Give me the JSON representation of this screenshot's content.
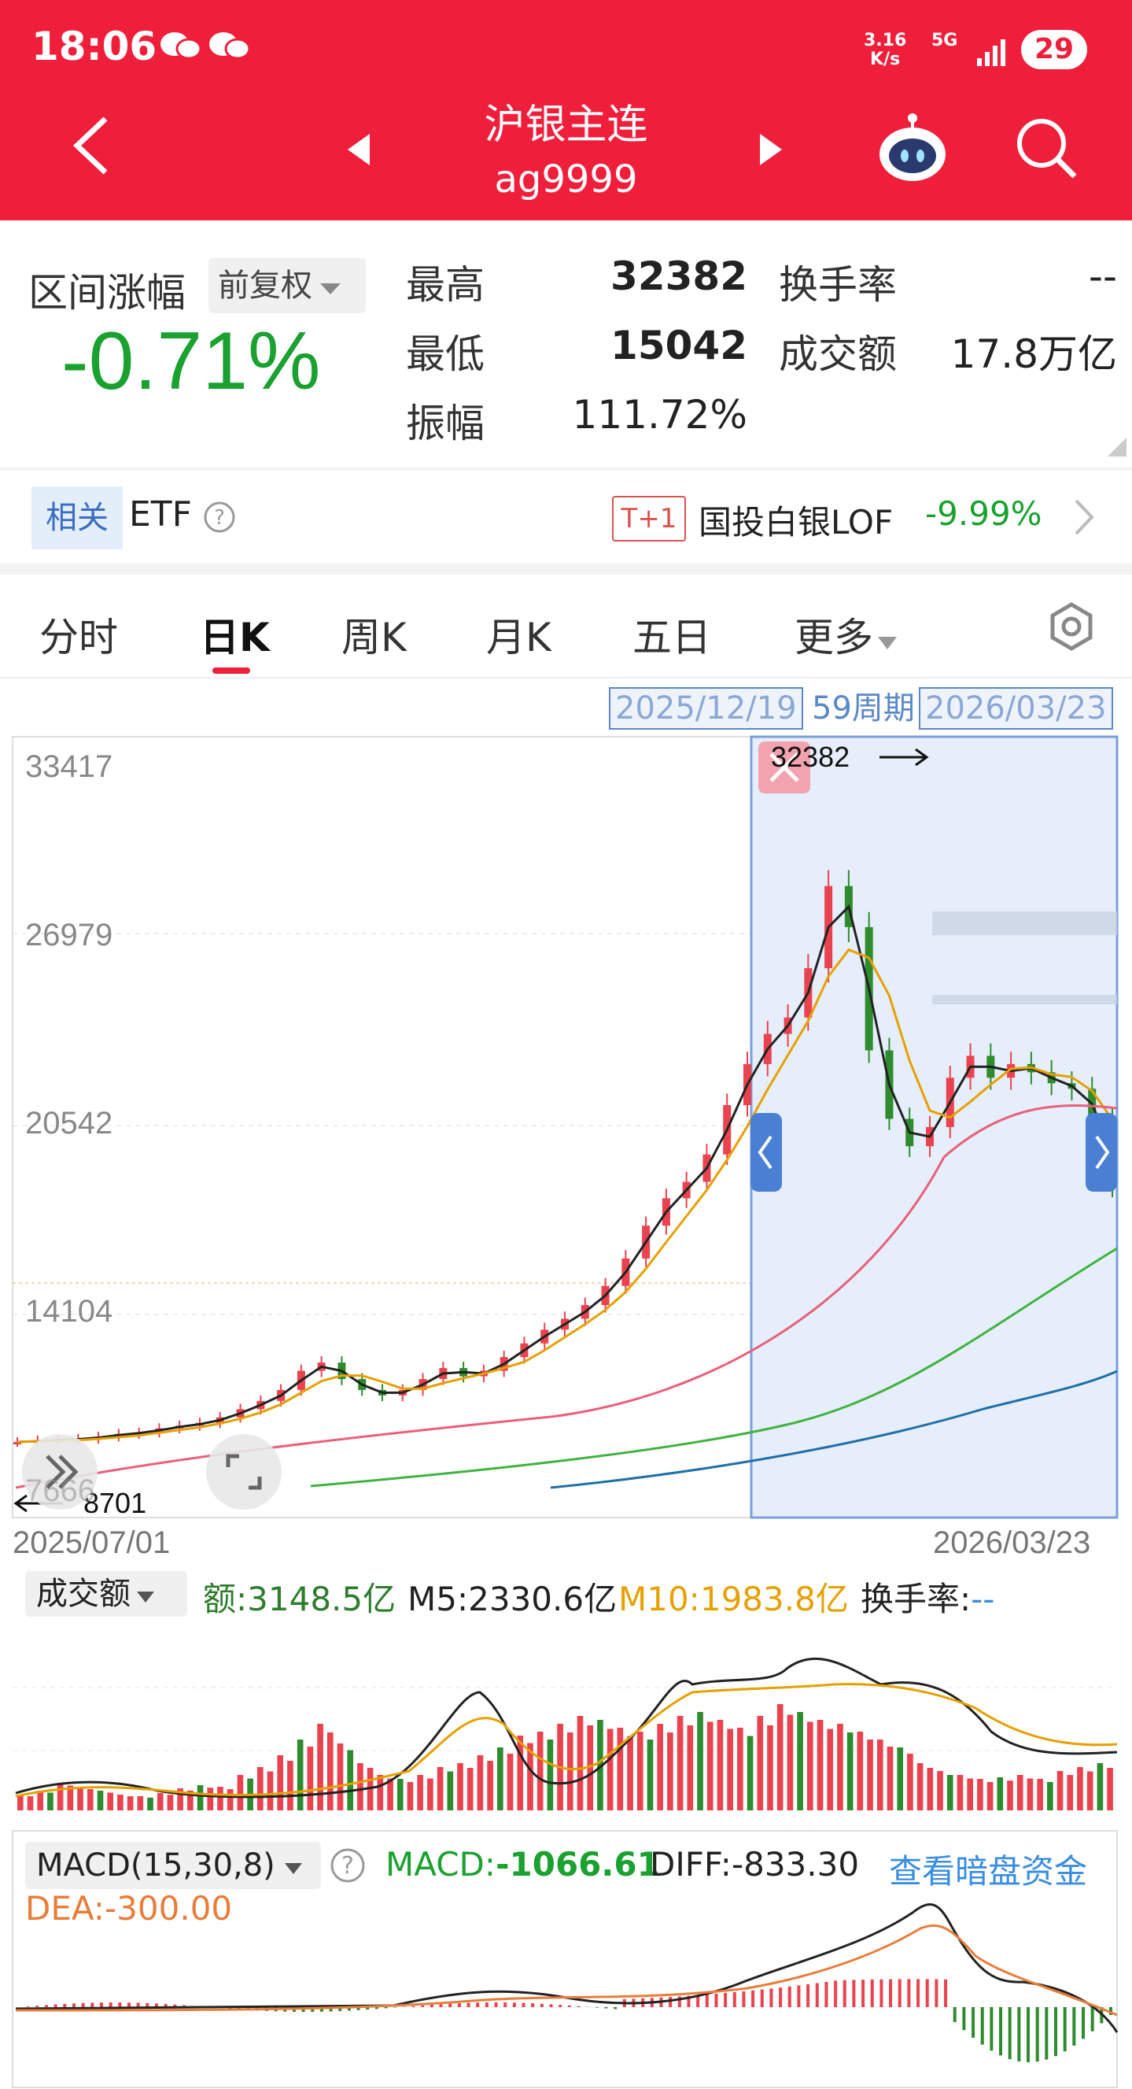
{
  "status": {
    "time": "18:06",
    "net_speed": "3.16",
    "net_unit": "K/s",
    "network": "5G",
    "battery": "29"
  },
  "header": {
    "title": "沪银主连",
    "code": "ag9999"
  },
  "stats": {
    "range_change_label": "区间涨幅",
    "adjust_label": "前复权",
    "range_change": "-0.71%",
    "high_label": "最高",
    "high": "32382",
    "low_label": "最低",
    "low": "15042",
    "amp_label": "振幅",
    "amp": "111.72%",
    "turnover_label": "换手率",
    "turnover": "--",
    "volume_label": "成交额",
    "volume": "17.8万亿"
  },
  "etf": {
    "tag": "相关",
    "label": "ETF",
    "badge": "T+1",
    "name": "国投白银LOF",
    "change": "-9.99%"
  },
  "tabs": [
    "分时",
    "日K",
    "周K",
    "月K",
    "五日",
    "更多"
  ],
  "range": {
    "start": "2025/12/19",
    "period": "59周期",
    "end": "2026/03/23"
  },
  "chart_data": {
    "type": "candlestick",
    "y_ticks": [
      "33417",
      "26979",
      "20542",
      "14104",
      "7666"
    ],
    "x_labels": [
      "2025/07/01",
      "2026/03/23"
    ],
    "max_label": "32382",
    "min_label": "8701",
    "ma_close": [
      8700,
      8760,
      8780,
      8820,
      8900,
      9000,
      9050,
      9200,
      9300,
      9400,
      9600,
      9900,
      10200,
      10600,
      11300,
      11600,
      11000,
      10600,
      10400,
      10600,
      11000,
      11400,
      11100,
      11300,
      11800,
      12300,
      12800,
      13200,
      13700,
      14400,
      15400,
      16600,
      17600,
      18200,
      19200,
      21000,
      22500,
      23600,
      24200,
      26000,
      29000,
      27500,
      23000,
      20500,
      19500,
      20200,
      22000,
      22800,
      22000,
      22500,
      22200,
      21800,
      21600,
      20500,
      18000
    ]
  },
  "volume": {
    "selector": "成交额",
    "amount_label": "额:",
    "amount": "3148.5亿",
    "m5_label": "M5:",
    "m5": "2330.6亿",
    "m10_label": "M10:",
    "m10": "1983.8亿",
    "turnover_label": "换手率:",
    "turnover": "--",
    "bars": [
      20,
      25,
      35,
      30,
      25,
      20,
      18,
      22,
      28,
      32,
      30,
      45,
      55,
      70,
      90,
      110,
      85,
      60,
      45,
      40,
      45,
      55,
      60,
      70,
      80,
      95,
      100,
      110,
      120,
      115,
      105,
      100,
      110,
      120,
      125,
      115,
      105,
      120,
      135,
      125,
      115,
      110,
      100,
      90,
      80,
      60,
      50,
      45,
      40,
      42,
      45,
      40,
      50,
      55,
      60
    ]
  },
  "macd": {
    "selector": "MACD(15,30,8)",
    "macd_label": "MACD:",
    "macd": "-1066.61",
    "diff_label": "DIFF:",
    "diff": "-833.30",
    "dea_label": "DEA:",
    "dea": "-300.00",
    "link": "查看暗盘资金"
  },
  "colors": {
    "brand": "#ef1f3b",
    "up": "#e8434e",
    "down": "#2e8b2e",
    "ma5": "#222222",
    "ma10": "#e6a000",
    "ma20": "#e9607a",
    "ma60": "#3fb33f",
    "ma120": "#1f6fa8"
  }
}
